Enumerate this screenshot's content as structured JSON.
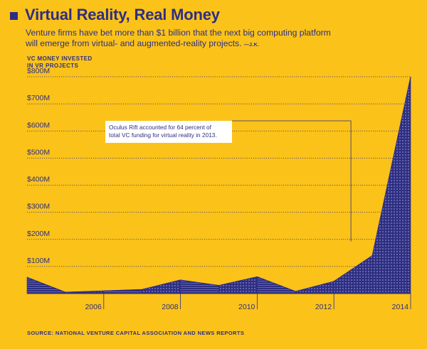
{
  "header": {
    "title": "Virtual Reality, Real Money",
    "subtitle": "Venture firms have bet more than $1 billion that the next big computing platform will emerge from virtual- and augmented-reality projects.",
    "credit": "—J.K."
  },
  "source": "SOURCE: NATIONAL VENTURE CAPITAL ASSOCIATION AND NEWS REPORTS",
  "colors": {
    "background": "#FBC21A",
    "series": "#2E2F82"
  },
  "chart_data": {
    "type": "area",
    "ylabel": "VC MONEY INVESTED\nIN VR PROJECTS",
    "x": [
      2004,
      2005,
      2006,
      2007,
      2008,
      2009,
      2010,
      2011,
      2012,
      2013,
      2014
    ],
    "values": [
      60,
      5,
      10,
      15,
      50,
      30,
      62,
      8,
      45,
      140,
      800
    ],
    "ylim": [
      0,
      800
    ],
    "xlim": [
      2004,
      2014
    ],
    "y_ticks": [
      100,
      200,
      300,
      400,
      500,
      600,
      700,
      800
    ],
    "y_tick_labels": [
      "$100M",
      "$200M",
      "$300M",
      "$400M",
      "$500M",
      "$600M",
      "$700M",
      "$800M"
    ],
    "x_ticks": [
      2006,
      2008,
      2010,
      2012,
      2014
    ],
    "x_tick_labels": [
      "2006",
      "2008",
      "2010",
      "2012",
      "2014"
    ],
    "grid": true,
    "annotation": {
      "text_lines": [
        "Oculus Rift accounted for 64 percent of",
        "total VC funding for virtual reality in 2013."
      ],
      "x": 2013
    }
  }
}
